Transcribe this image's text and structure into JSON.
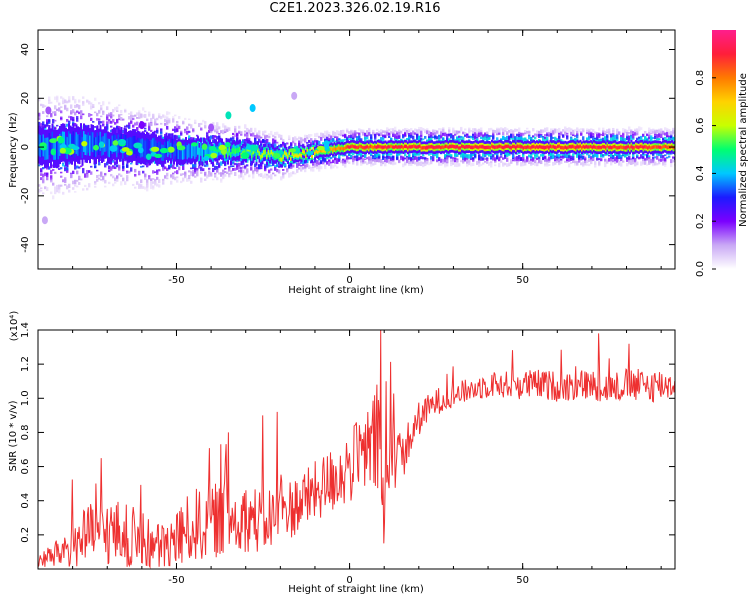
{
  "figure": {
    "title": "C2E1.2023.326.02.19.R16"
  },
  "chart_data": [
    {
      "type": "heatmap",
      "xlabel": "Height of straight line (km)",
      "ylabel": "Frequency (Hz)",
      "xlim": [
        -90,
        94
      ],
      "ylim": [
        -50,
        48
      ],
      "xticks": [
        -50,
        0,
        50
      ],
      "xtick_labels": [
        "-50",
        "0",
        "50"
      ],
      "yticks": [
        -40,
        -20,
        0,
        20,
        40
      ],
      "ytick_labels": [
        "-40",
        "-20",
        "0",
        "20",
        "40"
      ],
      "colorbar": {
        "label": "Normalized spectral amplitude",
        "ticks": [
          0.0,
          0.2,
          0.4,
          0.6,
          0.8
        ],
        "tick_labels": [
          "0.0",
          "0.2",
          "0.4",
          "0.6",
          "0.8"
        ],
        "range": [
          0,
          1
        ],
        "colors": [
          "#ffffff",
          "#c9a8f5",
          "#7b00ff",
          "#1b1bff",
          "#00c8ff",
          "#00ff70",
          "#c8ff00",
          "#ffd200",
          "#ff7a00",
          "#ff1e3a",
          "#ff1e8c"
        ]
      },
      "ridge": {
        "x": [
          -90,
          -80,
          -70,
          -60,
          -50,
          -40,
          -30,
          -20,
          -15,
          -10,
          -5,
          0,
          5,
          10,
          20,
          30,
          40,
          50,
          60,
          70,
          80,
          90,
          94
        ],
        "frequency": [
          0,
          1,
          1,
          -1,
          -1,
          -2,
          -2,
          -4,
          -3,
          -2,
          -1,
          0,
          0,
          0,
          0,
          0,
          0,
          0,
          0,
          0,
          0,
          0,
          0
        ],
        "peak_amplitude": [
          0.45,
          0.5,
          0.48,
          0.45,
          0.5,
          0.55,
          0.58,
          0.65,
          0.7,
          0.75,
          0.8,
          0.9,
          0.88,
          0.88,
          0.92,
          0.92,
          0.92,
          0.92,
          0.92,
          0.9,
          0.9,
          0.88,
          0.85
        ],
        "half_width": [
          6,
          6,
          5,
          5,
          4,
          3.5,
          3,
          2.5,
          2,
          2,
          2,
          2,
          2,
          2,
          2,
          2,
          2,
          2,
          2,
          2,
          2,
          2,
          2
        ]
      },
      "outliers": [
        {
          "x": -88,
          "frequency": -30,
          "amplitude": 0.1
        },
        {
          "x": -87,
          "frequency": 15,
          "amplitude": 0.15
        },
        {
          "x": -35,
          "frequency": 13,
          "amplitude": 0.45
        },
        {
          "x": -28,
          "frequency": 16,
          "amplitude": 0.4
        },
        {
          "x": -40,
          "frequency": 8,
          "amplitude": 0.15
        },
        {
          "x": -60,
          "frequency": 9,
          "amplitude": 0.2
        },
        {
          "x": -16,
          "frequency": 21,
          "amplitude": 0.1
        }
      ]
    },
    {
      "type": "line",
      "xlabel": "Height of straight line (km)",
      "ylabel": "SNR (10 * v/v)",
      "y_multiplier": "(x10⁴)",
      "xlim": [
        -90,
        94
      ],
      "ylim": [
        0.0,
        1.4
      ],
      "xticks": [
        -50,
        0,
        50
      ],
      "xtick_labels": [
        "-50",
        "0",
        "50"
      ],
      "yticks": [
        0.2,
        0.4,
        0.6,
        0.8,
        1.0,
        1.2,
        1.4
      ],
      "ytick_labels": [
        "0.2",
        "0.4",
        "0.6",
        "0.8",
        "1.0",
        "1.2",
        "1.4"
      ],
      "series": [
        {
          "color": "#ee3030",
          "x": [
            -90,
            -85,
            -80,
            -75,
            -70,
            -65,
            -60,
            -55,
            -50,
            -45,
            -40,
            -35,
            -30,
            -25,
            -20,
            -15,
            -10,
            -5,
            0,
            5,
            8,
            10,
            12,
            15,
            20,
            25,
            30,
            35,
            40,
            45,
            50,
            55,
            60,
            65,
            70,
            75,
            80,
            85,
            90,
            94
          ],
          "y": [
            0.05,
            0.08,
            0.15,
            0.2,
            0.22,
            0.2,
            0.15,
            0.12,
            0.18,
            0.25,
            0.28,
            0.3,
            0.3,
            0.28,
            0.32,
            0.38,
            0.45,
            0.52,
            0.6,
            0.68,
            0.75,
            0.3,
            0.7,
            0.65,
            0.88,
            0.98,
            1.02,
            1.05,
            1.08,
            1.08,
            1.08,
            1.08,
            1.07,
            1.07,
            1.08,
            1.06,
            1.08,
            1.07,
            1.08,
            1.08
          ],
          "noise": [
            0.05,
            0.08,
            0.15,
            0.18,
            0.2,
            0.2,
            0.18,
            0.15,
            0.18,
            0.22,
            0.22,
            0.22,
            0.2,
            0.2,
            0.18,
            0.18,
            0.18,
            0.2,
            0.22,
            0.25,
            0.35,
            0.3,
            0.25,
            0.15,
            0.1,
            0.08,
            0.07,
            0.07,
            0.08,
            0.08,
            0.09,
            0.09,
            0.09,
            0.09,
            0.09,
            0.09,
            0.1,
            0.1,
            0.1,
            0.08
          ]
        }
      ],
      "spikes": [
        {
          "x": 9,
          "y": 1.4
        },
        {
          "x": 9.8,
          "y": 0.15
        },
        {
          "x": 10.5,
          "y": 1.1
        },
        {
          "x": -35,
          "y": 0.8
        },
        {
          "x": -25,
          "y": 0.9
        },
        {
          "x": -21,
          "y": 0.92
        },
        {
          "x": 72,
          "y": 1.38
        }
      ]
    }
  ]
}
